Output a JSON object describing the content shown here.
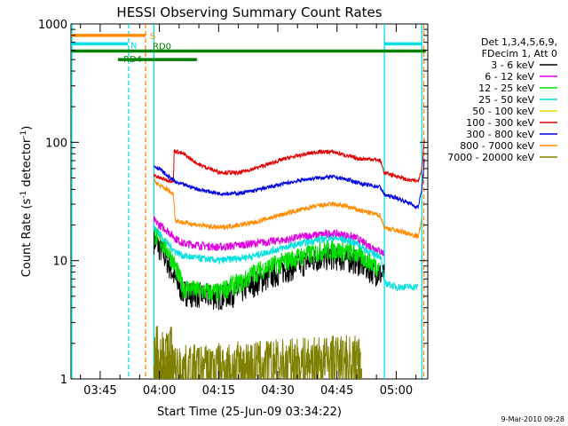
{
  "chart_data": {
    "type": "line",
    "title": "HESSI Observing Summary Count Rates",
    "xlabel": "Start Time (25-Jun-09 03:34:22)",
    "ylabel_main": "Count Rate (s",
    "ylabel_sup1": "-1",
    "ylabel_mid": " detector",
    "ylabel_sup2": "-1",
    "ylabel_end": ")",
    "y_scale": "log",
    "ylim": [
      1,
      1000
    ],
    "xlim_min": [
      217.6,
      308.0
    ],
    "y_ticks": [
      {
        "value": 1,
        "label": "1"
      },
      {
        "value": 10,
        "label": "10"
      },
      {
        "value": 100,
        "label": "100"
      },
      {
        "value": 1000,
        "label": "1000"
      }
    ],
    "x_ticks": [
      {
        "value": 225,
        "label": "03:45"
      },
      {
        "value": 240,
        "label": "04:00"
      },
      {
        "value": 255,
        "label": "04:15"
      },
      {
        "value": 270,
        "label": "04:30"
      },
      {
        "value": 285,
        "label": "04:45"
      },
      {
        "value": 300,
        "label": "05:00"
      }
    ],
    "legend_header": [
      "Det 1,3,4,5,6,9,",
      "FDecim 1, Att 0"
    ],
    "legend_position": "right",
    "footer": "9-Mar-2010 09:28",
    "series": [
      {
        "name": "3 - 6 keV",
        "color": "#000000",
        "points": [
          [
            238.6,
            15
          ],
          [
            240,
            13
          ],
          [
            242,
            10
          ],
          [
            244,
            7
          ],
          [
            246,
            5.5
          ],
          [
            250,
            5.2
          ],
          [
            255,
            5
          ],
          [
            260,
            5.5
          ],
          [
            264,
            6.5
          ],
          [
            268,
            7.5
          ],
          [
            272,
            8.5
          ],
          [
            276,
            9.5
          ],
          [
            280,
            10.5
          ],
          [
            284,
            11
          ],
          [
            287,
            10.5
          ],
          [
            290,
            10
          ],
          [
            292,
            9
          ],
          [
            295,
            8
          ],
          [
            297,
            7.5
          ]
        ]
      },
      {
        "name": "6 - 12 keV",
        "color": "#e000e0",
        "points": [
          [
            238.6,
            22
          ],
          [
            240,
            20
          ],
          [
            242,
            18
          ],
          [
            244,
            15.5
          ],
          [
            246,
            14
          ],
          [
            250,
            13.5
          ],
          [
            255,
            13
          ],
          [
            260,
            13.5
          ],
          [
            264,
            14
          ],
          [
            268,
            14.5
          ],
          [
            272,
            15
          ],
          [
            276,
            16
          ],
          [
            280,
            16.5
          ],
          [
            284,
            17
          ],
          [
            287,
            16.5
          ],
          [
            290,
            15.5
          ],
          [
            292,
            14
          ],
          [
            295,
            12.5
          ],
          [
            297,
            11.5
          ]
        ]
      },
      {
        "name": "12 - 25 keV",
        "color": "#00e000",
        "points": [
          [
            238.6,
            17
          ],
          [
            240,
            15
          ],
          [
            242,
            12.5
          ],
          [
            244,
            9
          ],
          [
            246,
            6
          ],
          [
            250,
            5.6
          ],
          [
            255,
            5.4
          ],
          [
            258,
            6.2
          ],
          [
            261,
            6.6
          ],
          [
            264,
            8
          ],
          [
            268,
            9
          ],
          [
            272,
            10
          ],
          [
            276,
            11
          ],
          [
            280,
            12
          ],
          [
            284,
            12.5
          ],
          [
            287,
            12
          ],
          [
            290,
            11.5
          ],
          [
            292,
            10.5
          ],
          [
            294,
            9.5
          ],
          [
            295.7,
            9
          ]
        ]
      },
      {
        "name": "25 - 50 keV",
        "color": "#00e0e0",
        "points": [
          [
            238.6,
            19
          ],
          [
            240,
            17
          ],
          [
            242,
            14
          ],
          [
            244,
            12
          ],
          [
            246,
            11
          ],
          [
            250,
            10.5
          ],
          [
            255,
            10
          ],
          [
            260,
            10.5
          ],
          [
            264,
            11
          ],
          [
            268,
            12
          ],
          [
            272,
            13
          ],
          [
            276,
            14
          ],
          [
            280,
            15
          ],
          [
            284,
            15.5
          ],
          [
            287,
            15
          ],
          [
            290,
            14
          ],
          [
            292,
            12.5
          ],
          [
            294,
            11.5
          ],
          [
            296,
            11
          ],
          [
            297,
            6.5
          ],
          [
            300,
            6
          ],
          [
            303,
            6
          ],
          [
            305.5,
            6
          ]
        ]
      },
      {
        "name": "50 - 100 keV",
        "color": "#e0e000",
        "points": []
      },
      {
        "name": "100 - 300 keV",
        "color": "#e00000",
        "points": [
          [
            238.6,
            53
          ],
          [
            240,
            50
          ],
          [
            242,
            48
          ],
          [
            243.6,
            47
          ],
          [
            243.7,
            85
          ],
          [
            246,
            80
          ],
          [
            250,
            65
          ],
          [
            255,
            56
          ],
          [
            260,
            55
          ],
          [
            264,
            60
          ],
          [
            268,
            66
          ],
          [
            272,
            73
          ],
          [
            276,
            78
          ],
          [
            280,
            83
          ],
          [
            284,
            83
          ],
          [
            287,
            78
          ],
          [
            290,
            73
          ],
          [
            294,
            72
          ],
          [
            296,
            70
          ],
          [
            297,
            55
          ],
          [
            300,
            52
          ],
          [
            303,
            48
          ],
          [
            305.5,
            47
          ],
          [
            306.5,
            60
          ],
          [
            307.2,
            110
          ]
        ]
      },
      {
        "name": "300 - 800 keV",
        "color": "#0000e0",
        "points": [
          [
            238.6,
            63
          ],
          [
            240,
            60
          ],
          [
            242,
            52
          ],
          [
            243.6,
            48
          ],
          [
            244,
            46
          ],
          [
            246,
            44
          ],
          [
            250,
            40
          ],
          [
            255,
            37
          ],
          [
            260,
            37
          ],
          [
            264,
            39
          ],
          [
            268,
            42
          ],
          [
            272,
            45
          ],
          [
            276,
            48
          ],
          [
            280,
            50
          ],
          [
            284,
            51
          ],
          [
            287,
            49
          ],
          [
            290,
            46
          ],
          [
            292,
            44
          ],
          [
            294,
            43
          ],
          [
            296,
            42
          ],
          [
            297,
            36
          ],
          [
            300,
            34
          ],
          [
            303,
            31
          ],
          [
            305.5,
            28
          ],
          [
            306.5,
            40
          ],
          [
            307.2,
            75
          ]
        ]
      },
      {
        "name": "800 - 7000 keV",
        "color": "#ff8c00",
        "points": [
          [
            238.6,
            48
          ],
          [
            240,
            43
          ],
          [
            242,
            40
          ],
          [
            243.6,
            36
          ],
          [
            244,
            22
          ],
          [
            246,
            21
          ],
          [
            250,
            20
          ],
          [
            255,
            19
          ],
          [
            260,
            20
          ],
          [
            264,
            21
          ],
          [
            268,
            23
          ],
          [
            272,
            25
          ],
          [
            276,
            27
          ],
          [
            280,
            29
          ],
          [
            284,
            30
          ],
          [
            287,
            29
          ],
          [
            290,
            27
          ],
          [
            292,
            26
          ],
          [
            294,
            25
          ],
          [
            296,
            24
          ],
          [
            297,
            19
          ],
          [
            300,
            18
          ],
          [
            303,
            17
          ],
          [
            305.5,
            16
          ],
          [
            306.5,
            22
          ]
        ]
      },
      {
        "name": "7000 - 20000 keV",
        "color": "#808000",
        "points": [
          [
            238.6,
            1.6
          ],
          [
            239.5,
            2
          ],
          [
            240,
            1.3
          ],
          [
            241,
            2
          ],
          [
            242,
            1.5
          ],
          [
            243,
            2
          ],
          [
            243.6,
            1.2
          ],
          [
            290,
            1.5
          ],
          [
            291,
            1.8
          ]
        ]
      }
    ],
    "annotations": [
      {
        "label": "S",
        "color": "#ff8c00",
        "x1": 217.6,
        "x2": 236.5,
        "y_value": 800
      },
      {
        "label": "N",
        "color": "#00e0e0",
        "x1": 217.6,
        "x2": 232.0,
        "y_value": 680
      },
      {
        "label": "RD0",
        "color": "#008000",
        "x1": 217.6,
        "x2": 307.5,
        "y_value": 590
      },
      {
        "label": "RD4",
        "color": "#008000",
        "x1": 229.5,
        "x2": 249.5,
        "y_value": 500
      }
    ],
    "cyan_band_right": {
      "x1": 297.0,
      "x2": 306.5,
      "y_value": 680
    },
    "vertical_lines": [
      {
        "x": 217.8,
        "color": "#00e0e0",
        "style": "solid"
      },
      {
        "x": 232.2,
        "color": "#00e0e0",
        "style": "dashed"
      },
      {
        "x": 236.5,
        "color": "#ff8c00",
        "style": "dashed"
      },
      {
        "x": 238.6,
        "color": "#00e0e0",
        "style": "solid"
      },
      {
        "x": 297.0,
        "color": "#00e0e0",
        "style": "solid"
      },
      {
        "x": 306.5,
        "color": "#00e0e0",
        "style": "solid"
      },
      {
        "x": 307.0,
        "color": "#ff8c00",
        "style": "dashed"
      }
    ]
  }
}
